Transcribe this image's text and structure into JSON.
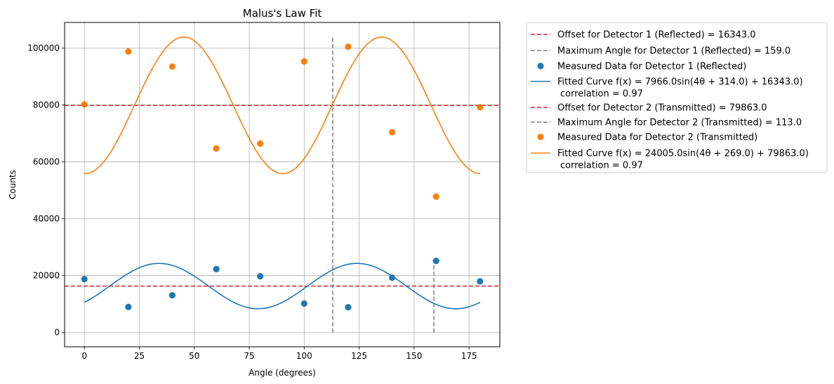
{
  "chart_data": {
    "type": "scatter",
    "title": "Malus's Law Fit",
    "xlabel": "Angle (degrees)",
    "ylabel": "Counts",
    "xlim": [
      -9,
      189
    ],
    "ylim": [
      -5000,
      109000
    ],
    "xticks": [
      0,
      25,
      50,
      75,
      100,
      125,
      150,
      175
    ],
    "xtick_labels": [
      "0",
      "25",
      "50",
      "75",
      "100",
      "125",
      "150",
      "175"
    ],
    "yticks": [
      0,
      20000,
      40000,
      60000,
      80000,
      100000
    ],
    "ytick_labels": [
      "0",
      "20000",
      "40000",
      "60000",
      "80000",
      "100000"
    ],
    "grid": true,
    "legend_position": "outside-right",
    "colors": {
      "detector1": "#1f77b4",
      "detector2": "#ff7f0e",
      "offset": "#d62728",
      "max_angle": "#808080"
    },
    "series": [
      {
        "name": "Measured Data for Detector 1 (Reflected)",
        "kind": "scatter",
        "x": [
          0,
          20,
          40,
          60,
          80,
          100,
          120,
          140,
          160,
          180
        ],
        "y": [
          18800,
          9000,
          13100,
          22300,
          19800,
          10200,
          8900,
          19300,
          25200,
          18000
        ]
      },
      {
        "name": "Measured Data for Detector 2 (Transmitted)",
        "kind": "scatter",
        "x": [
          0,
          20,
          40,
          60,
          80,
          100,
          120,
          140,
          160,
          180
        ],
        "y": [
          80200,
          98800,
          93500,
          64700,
          66400,
          95300,
          100500,
          70400,
          47800,
          79200
        ]
      },
      {
        "name": "Fitted Curve Detector 1",
        "kind": "fit",
        "amplitude": 7966.0,
        "frequency": 4,
        "phase_deg": 314.0,
        "offset": 16343.0,
        "correlation": 0.97
      },
      {
        "name": "Fitted Curve Detector 2",
        "kind": "fit",
        "amplitude": 24005.0,
        "frequency": 4,
        "phase_deg": 269.0,
        "offset": 79863.0,
        "correlation": 0.97
      }
    ],
    "offsets": [
      16343.0,
      79863.0
    ],
    "max_angles": [
      {
        "x": 159.0,
        "y_top": 24309
      },
      {
        "x": 113.0,
        "y_top": 103868
      }
    ],
    "legend": [
      {
        "kind": "dashed",
        "color": "#d62728",
        "label": "Offset for Detector 1 (Reflected) = 16343.0"
      },
      {
        "kind": "dashed",
        "color": "#808080",
        "label": "Maximum Angle for Detector 1 (Reflected) = 159.0"
      },
      {
        "kind": "dot",
        "color": "#1f77b4",
        "label": "Measured Data for Detector 1 (Reflected)"
      },
      {
        "kind": "line",
        "color": "#1f77b4",
        "label": "Fitted Curve f(x) = 7966.0sin(4θ + 314.0) + 16343.0)",
        "label2": "correlation = 0.97"
      },
      {
        "kind": "dashed",
        "color": "#d62728",
        "label": "Offset for Detector 2 (Transmitted) = 79863.0"
      },
      {
        "kind": "dashed",
        "color": "#808080",
        "label": "Maximum Angle for Detector 2 (Transmitted) = 113.0"
      },
      {
        "kind": "dot",
        "color": "#ff7f0e",
        "label": "Measured Data for Detector 2 (Transmitted)"
      },
      {
        "kind": "line",
        "color": "#ff7f0e",
        "label": "Fitted Curve f(x) = 24005.0sin(4θ + 269.0) + 79863.0)",
        "label2": "correlation = 0.97"
      }
    ]
  }
}
